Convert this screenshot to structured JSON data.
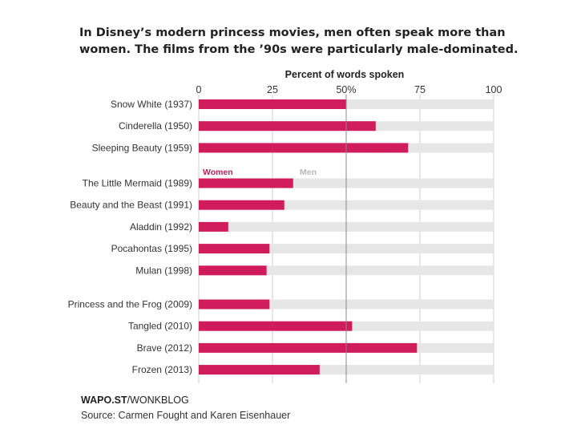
{
  "chart_data": {
    "type": "bar",
    "orientation": "horizontal",
    "stacked": true,
    "title": "In Disney’s modern princess movies, men often speak more than women. The films from the ’90s were particularly male-dominated.",
    "xlabel": "Percent of words spoken",
    "ylabel": "",
    "xlim": [
      0,
      100
    ],
    "ticks": [
      {
        "value": 0,
        "label": "0"
      },
      {
        "value": 25,
        "label": "25"
      },
      {
        "value": 50,
        "label": "50%"
      },
      {
        "value": 75,
        "label": "75"
      },
      {
        "value": 100,
        "label": "100"
      }
    ],
    "groups": [
      {
        "categories": [
          "Snow White (1937)",
          "Cinderella (1950)",
          "Sleeping Beauty (1959)"
        ]
      },
      {
        "categories": [
          "The Little Mermaid (1989)",
          "Beauty and the Beast (1991)",
          "Aladdin (1992)",
          "Pocahontas (1995)",
          "Mulan (1998)"
        ]
      },
      {
        "categories": [
          "Princess and the Frog (2009)",
          "Tangled (2010)",
          "Brave (2012)",
          "Frozen (2013)"
        ]
      }
    ],
    "categories": [
      "Snow White (1937)",
      "Cinderella (1950)",
      "Sleeping Beauty (1959)",
      "The Little Mermaid (1989)",
      "Beauty and the Beast (1991)",
      "Aladdin (1992)",
      "Pocahontas (1995)",
      "Mulan (1998)",
      "Princess and the Frog (2009)",
      "Tangled (2010)",
      "Brave (2012)",
      "Frozen (2013)"
    ],
    "series": [
      {
        "name": "Women",
        "color": "#d01c5b",
        "values": [
          50,
          60,
          71,
          32,
          29,
          10,
          24,
          23,
          24,
          52,
          74,
          41
        ]
      },
      {
        "name": "Men",
        "color": "#e6e6e6",
        "values": [
          50,
          40,
          29,
          68,
          71,
          90,
          76,
          77,
          76,
          48,
          26,
          59
        ]
      }
    ],
    "legend": {
      "women_label": "Women",
      "men_label": "Men",
      "placement": "inline between first and second group"
    },
    "grid": true,
    "reference_line": 50
  },
  "footer": {
    "brand_bold": "WAPO.ST",
    "brand_rest": "/WONKBLOG",
    "source": "Source: Carmen Fought and Karen Eisenhauer"
  },
  "colors": {
    "women": "#d01c5b",
    "men": "#e6e6e6",
    "grid": "#cfcfcf",
    "women_label": "#c41e5a",
    "men_label": "#b8b8b8"
  }
}
